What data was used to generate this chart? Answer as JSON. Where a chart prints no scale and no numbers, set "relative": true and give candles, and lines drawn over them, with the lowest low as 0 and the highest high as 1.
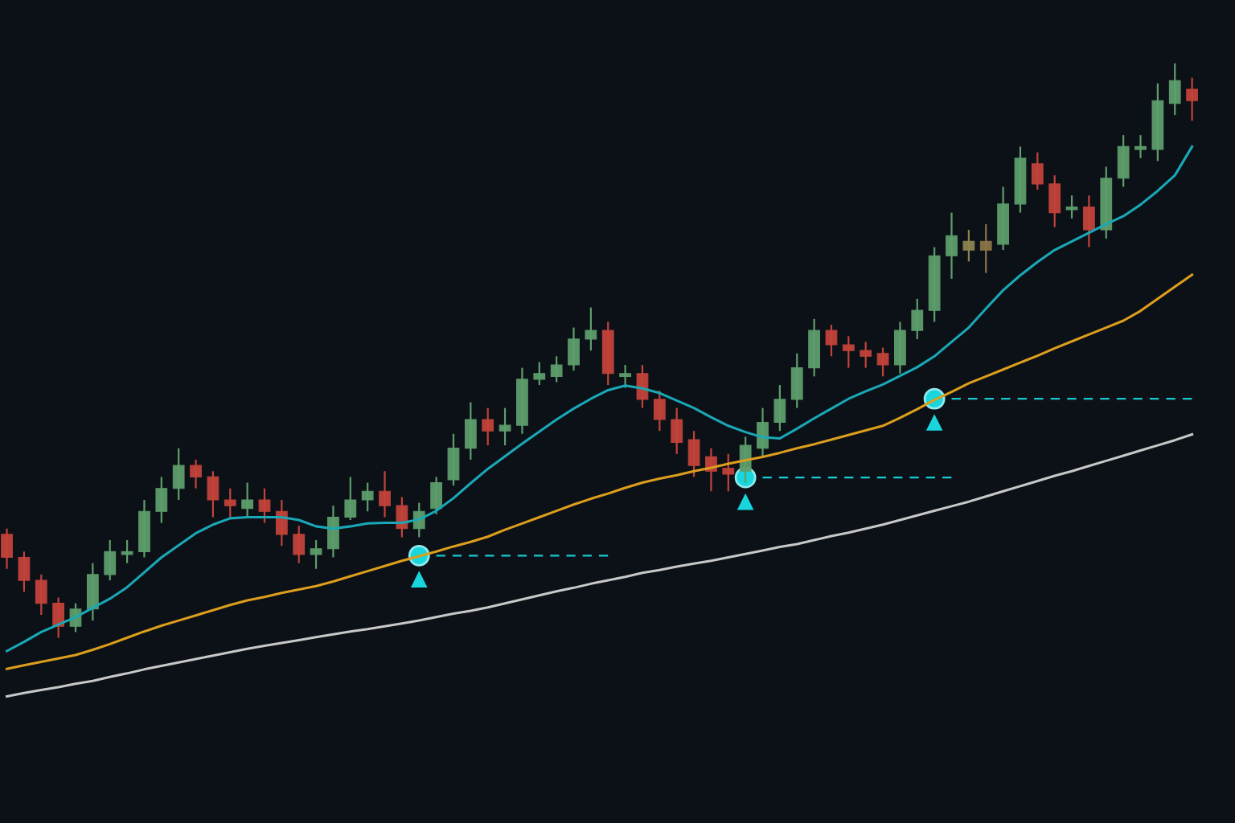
{
  "chart_data": {
    "type": "candlestick",
    "relative": true,
    "categories": [
      null,
      null,
      null,
      null,
      null,
      null,
      null,
      null,
      null,
      null,
      null,
      null,
      null,
      null,
      null,
      null,
      null,
      null,
      null,
      null,
      null,
      null,
      null,
      null,
      null,
      null,
      null,
      null,
      null,
      null,
      null,
      null,
      null,
      null,
      null,
      null,
      null,
      null,
      null,
      null,
      null,
      null,
      null,
      null,
      null,
      null,
      null,
      null,
      null,
      null,
      null,
      null,
      null,
      null,
      null,
      null,
      null,
      null,
      null,
      null,
      null,
      null,
      null,
      null,
      null,
      null,
      null,
      null,
      null,
      null
    ],
    "ohlc": [
      [
        0.18,
        0.19,
        0.12,
        0.14
      ],
      [
        0.14,
        0.15,
        0.08,
        0.1
      ],
      [
        0.1,
        0.11,
        0.04,
        0.06
      ],
      [
        0.06,
        0.07,
        0,
        0.02
      ],
      [
        0.02,
        0.06,
        0.01,
        0.05
      ],
      [
        0.05,
        0.13,
        0.03,
        0.11
      ],
      [
        0.11,
        0.17,
        0.1,
        0.15
      ],
      [
        0.145,
        0.17,
        0.13,
        0.15
      ],
      [
        0.15,
        0.24,
        0.14,
        0.22
      ],
      [
        0.22,
        0.28,
        0.2,
        0.26
      ],
      [
        0.26,
        0.33,
        0.24,
        0.3
      ],
      [
        0.3,
        0.31,
        0.26,
        0.28
      ],
      [
        0.28,
        0.29,
        0.21,
        0.24
      ],
      [
        0.24,
        0.26,
        0.21,
        0.23
      ],
      [
        0.225,
        0.27,
        0.21,
        0.24
      ],
      [
        0.24,
        0.26,
        0.2,
        0.22
      ],
      [
        0.22,
        0.24,
        0.16,
        0.18
      ],
      [
        0.18,
        0.195,
        0.13,
        0.145
      ],
      [
        0.145,
        0.17,
        0.12,
        0.155
      ],
      [
        0.155,
        0.23,
        0.14,
        0.21
      ],
      [
        0.21,
        0.28,
        0.205,
        0.24
      ],
      [
        0.24,
        0.27,
        0.22,
        0.255
      ],
      [
        0.255,
        0.29,
        0.21,
        0.23
      ],
      [
        0.23,
        0.245,
        0.175,
        0.19
      ],
      [
        0.19,
        0.235,
        0.175,
        0.22
      ],
      [
        0.225,
        0.28,
        0.215,
        0.27
      ],
      [
        0.275,
        0.355,
        0.265,
        0.33
      ],
      [
        0.33,
        0.41,
        0.31,
        0.38
      ],
      [
        0.38,
        0.4,
        0.335,
        0.36
      ],
      [
        0.36,
        0.4,
        0.335,
        0.37
      ],
      [
        0.37,
        0.47,
        0.355,
        0.45
      ],
      [
        0.45,
        0.48,
        0.44,
        0.46
      ],
      [
        0.455,
        0.49,
        0.445,
        0.475
      ],
      [
        0.475,
        0.54,
        0.465,
        0.52
      ],
      [
        0.52,
        0.575,
        0.5,
        0.535
      ],
      [
        0.535,
        0.55,
        0.44,
        0.46
      ],
      [
        0.455,
        0.475,
        0.435,
        0.46
      ],
      [
        0.46,
        0.475,
        0.4,
        0.415
      ],
      [
        0.415,
        0.43,
        0.36,
        0.38
      ],
      [
        0.38,
        0.4,
        0.32,
        0.34
      ],
      [
        0.345,
        0.36,
        0.28,
        0.3
      ],
      [
        0.315,
        0.33,
        0.255,
        0.29
      ],
      [
        0.295,
        0.32,
        0.255,
        0.285
      ],
      [
        0.29,
        0.35,
        0.27,
        0.335
      ],
      [
        0.33,
        0.4,
        0.315,
        0.375
      ],
      [
        0.375,
        0.44,
        0.36,
        0.415
      ],
      [
        0.415,
        0.495,
        0.4,
        0.47
      ],
      [
        0.47,
        0.555,
        0.455,
        0.535
      ],
      [
        0.535,
        0.545,
        0.49,
        0.51
      ],
      [
        0.51,
        0.525,
        0.47,
        0.5
      ],
      [
        0.5,
        0.515,
        0.47,
        0.49
      ],
      [
        0.495,
        0.505,
        0.455,
        0.475
      ],
      [
        0.475,
        0.55,
        0.46,
        0.535
      ],
      [
        0.535,
        0.59,
        0.52,
        0.57
      ],
      [
        0.57,
        0.68,
        0.55,
        0.665
      ],
      [
        0.665,
        0.74,
        0.625,
        0.7
      ],
      [
        0.69,
        0.71,
        0.655,
        0.675
      ],
      [
        0.69,
        0.72,
        0.635,
        0.675
      ],
      [
        0.685,
        0.785,
        0.675,
        0.755
      ],
      [
        0.755,
        0.855,
        0.74,
        0.835
      ],
      [
        0.825,
        0.845,
        0.78,
        0.79
      ],
      [
        0.79,
        0.805,
        0.715,
        0.74
      ],
      [
        0.745,
        0.77,
        0.73,
        0.75
      ],
      [
        0.75,
        0.77,
        0.68,
        0.71
      ],
      [
        0.71,
        0.82,
        0.695,
        0.8
      ],
      [
        0.8,
        0.875,
        0.785,
        0.855
      ],
      [
        0.85,
        0.875,
        0.835,
        0.855
      ],
      [
        0.85,
        0.965,
        0.83,
        0.935
      ],
      [
        0.93,
        1,
        0.91,
        0.97
      ],
      [
        0.955,
        0.975,
        0.9,
        0.935
      ]
    ],
    "colors": [
      "#c2433a",
      "#c2433a",
      "#c2433a",
      "#c2433a",
      "#5e9e6c",
      "#5e9e6c",
      "#5e9e6c",
      "#5e9e6c",
      "#5e9e6c",
      "#5e9e6c",
      "#5e9e6c",
      "#c2433a",
      "#c2433a",
      "#c2433a",
      "#5e9e6c",
      "#c2433a",
      "#c2433a",
      "#c2433a",
      "#5e9e6c",
      "#5e9e6c",
      "#5e9e6c",
      "#5e9e6c",
      "#c2433a",
      "#c2433a",
      "#5e9e6c",
      "#5e9e6c",
      "#5e9e6c",
      "#5e9e6c",
      "#c2433a",
      "#5e9e6c",
      "#5e9e6c",
      "#5e9e6c",
      "#5e9e6c",
      "#5e9e6c",
      "#5e9e6c",
      "#c2433a",
      "#5e9e6c",
      "#c2433a",
      "#c2433a",
      "#c2433a",
      "#c2433a",
      "#c2433a",
      "#c2433a",
      "#5e9e6c",
      "#5e9e6c",
      "#5e9e6c",
      "#5e9e6c",
      "#5e9e6c",
      "#c2433a",
      "#c2433a",
      "#c2433a",
      "#c2433a",
      "#5e9e6c",
      "#5e9e6c",
      "#5e9e6c",
      "#5e9e6c",
      "#8a8450",
      "#8a7448",
      "#5e9e6c",
      "#5e9e6c",
      "#c2433a",
      "#c2433a",
      "#5e9e6c",
      "#c2433a",
      "#5e9e6c",
      "#5e9e6c",
      "#5e9e6c",
      "#5e9e6c",
      "#5e9e6c",
      "#c2433a"
    ],
    "series": [
      {
        "type": "line",
        "color": "#c8c8c8",
        "values": [
          -0.102,
          -0.096,
          -0.091,
          -0.086,
          -0.08,
          -0.075,
          -0.068,
          -0.062,
          -0.055,
          -0.049,
          -0.043,
          -0.037,
          -0.031,
          -0.025,
          -0.019,
          -0.014,
          -0.009,
          -0.004,
          0.001,
          0.006,
          0.011,
          0.015,
          0.02,
          0.025,
          0.03,
          0.036,
          0.042,
          0.047,
          0.053,
          0.06,
          0.067,
          0.074,
          0.081,
          0.087,
          0.094,
          0.1,
          0.106,
          0.113,
          0.118,
          0.124,
          0.129,
          0.134,
          0.14,
          0.146,
          0.152,
          0.158,
          0.163,
          0.17,
          0.177,
          0.183,
          0.19,
          0.197,
          0.205,
          0.213,
          0.221,
          0.229,
          0.237,
          0.246,
          0.255,
          0.264,
          0.273,
          0.282,
          0.29,
          0.299,
          0.308,
          0.317,
          0.326,
          0.335,
          0.344,
          0.354
        ]
      },
      {
        "type": "line",
        "color": "#dd9e1e",
        "values": [
          -0.054,
          -0.048,
          -0.042,
          -0.036,
          -0.03,
          -0.021,
          -0.011,
          0.0,
          0.011,
          0.021,
          0.03,
          0.039,
          0.048,
          0.057,
          0.065,
          0.071,
          0.078,
          0.084,
          0.09,
          0.098,
          0.107,
          0.116,
          0.125,
          0.134,
          0.142,
          0.15,
          0.159,
          0.167,
          0.176,
          0.188,
          0.199,
          0.21,
          0.221,
          0.232,
          0.242,
          0.251,
          0.261,
          0.27,
          0.277,
          0.283,
          0.29,
          0.296,
          0.303,
          0.309,
          0.315,
          0.322,
          0.33,
          0.337,
          0.345,
          0.353,
          0.361,
          0.369,
          0.383,
          0.398,
          0.414,
          0.428,
          0.443,
          0.455,
          0.467,
          0.479,
          0.491,
          0.504,
          0.516,
          0.528,
          0.54,
          0.552,
          0.569,
          0.59,
          0.611,
          0.632
        ]
      },
      {
        "type": "line",
        "color": "#1aa8b6",
        "values": [
          -0.023,
          -0.007,
          0.01,
          0.023,
          0.036,
          0.052,
          0.068,
          0.088,
          0.114,
          0.14,
          0.161,
          0.182,
          0.197,
          0.208,
          0.21,
          0.21,
          0.21,
          0.205,
          0.194,
          0.19,
          0.194,
          0.199,
          0.2,
          0.2,
          0.206,
          0.221,
          0.243,
          0.269,
          0.294,
          0.316,
          0.338,
          0.359,
          0.38,
          0.399,
          0.416,
          0.431,
          0.439,
          0.434,
          0.426,
          0.413,
          0.4,
          0.384,
          0.369,
          0.358,
          0.349,
          0.347,
          0.364,
          0.382,
          0.399,
          0.416,
          0.429,
          0.441,
          0.456,
          0.471,
          0.49,
          0.515,
          0.54,
          0.573,
          0.605,
          0.631,
          0.654,
          0.675,
          0.69,
          0.705,
          0.72,
          0.734,
          0.754,
          0.778,
          0.805,
          0.855
        ]
      },
      {
        "type": "line",
        "color": "#19c9d2",
        "line_style": "dashed",
        "values": [
          null,
          null,
          null,
          null,
          null,
          null,
          null,
          null,
          null,
          null,
          null,
          null,
          null,
          null,
          null,
          null,
          null,
          null,
          null,
          null,
          null,
          null,
          null,
          null,
          null,
          0.143,
          0.143,
          0.143,
          0.143,
          0.143,
          0.143,
          0.143,
          0.143,
          0.143,
          0.143,
          0.143,
          null,
          null,
          null,
          null,
          null,
          null,
          null,
          null,
          null,
          null,
          null,
          null,
          null,
          null,
          null,
          null,
          null,
          null,
          null,
          null,
          null,
          null,
          null,
          null,
          null,
          null,
          null,
          null,
          null,
          null,
          null,
          null,
          null,
          null
        ]
      },
      {
        "type": "line",
        "color": "#19c9d2",
        "line_style": "dashed",
        "values": [
          null,
          null,
          null,
          null,
          null,
          null,
          null,
          null,
          null,
          null,
          null,
          null,
          null,
          null,
          null,
          null,
          null,
          null,
          null,
          null,
          null,
          null,
          null,
          null,
          null,
          null,
          null,
          null,
          null,
          null,
          null,
          null,
          null,
          null,
          null,
          null,
          null,
          null,
          null,
          null,
          null,
          null,
          null,
          null,
          0.279,
          0.279,
          0.279,
          0.279,
          0.279,
          0.279,
          0.279,
          0.279,
          0.279,
          0.279,
          0.279,
          0.279,
          null,
          null,
          null,
          null,
          null,
          null,
          null,
          null,
          null,
          null,
          null,
          null,
          null,
          null
        ]
      },
      {
        "type": "line",
        "color": "#19c9d2",
        "line_style": "dashed",
        "values": [
          null,
          null,
          null,
          null,
          null,
          null,
          null,
          null,
          null,
          null,
          null,
          null,
          null,
          null,
          null,
          null,
          null,
          null,
          null,
          null,
          null,
          null,
          null,
          null,
          null,
          null,
          null,
          null,
          null,
          null,
          null,
          null,
          null,
          null,
          null,
          null,
          null,
          null,
          null,
          null,
          null,
          null,
          null,
          null,
          null,
          null,
          null,
          null,
          null,
          null,
          null,
          null,
          null,
          null,
          null,
          0.416,
          0.416,
          0.416,
          0.416,
          0.416,
          0.416,
          0.416,
          0.416,
          0.416,
          0.416,
          0.416,
          0.416,
          0.416,
          0.416,
          0.416
        ]
      },
      {
        "type": "scatter",
        "color": "#19d6dc",
        "marker": "circle",
        "values": [
          null,
          null,
          null,
          null,
          null,
          null,
          null,
          null,
          null,
          null,
          null,
          null,
          null,
          null,
          null,
          null,
          null,
          null,
          null,
          null,
          null,
          null,
          null,
          null,
          0.143,
          null,
          null,
          null,
          null,
          null,
          null,
          null,
          null,
          null,
          null,
          null,
          null,
          null,
          null,
          null,
          null,
          null,
          null,
          0.279,
          null,
          null,
          null,
          null,
          null,
          null,
          null,
          null,
          null,
          null,
          0.416,
          null,
          null,
          null,
          null,
          null,
          null,
          null,
          null,
          null,
          null,
          null,
          null,
          null,
          null,
          null
        ]
      },
      {
        "type": "scatter",
        "color": "#19d6dc",
        "marker": "triangle",
        "values": [
          null,
          null,
          null,
          null,
          null,
          null,
          null,
          null,
          null,
          null,
          null,
          null,
          null,
          null,
          null,
          null,
          null,
          null,
          null,
          null,
          null,
          null,
          null,
          null,
          0.102,
          null,
          null,
          null,
          null,
          null,
          null,
          null,
          null,
          null,
          null,
          null,
          null,
          null,
          null,
          null,
          null,
          null,
          null,
          0.237,
          null,
          null,
          null,
          null,
          null,
          null,
          null,
          null,
          null,
          null,
          0.375,
          null,
          null,
          null,
          null,
          null,
          null,
          null,
          null,
          null,
          null,
          null,
          null,
          null,
          null,
          null
        ]
      }
    ]
  }
}
